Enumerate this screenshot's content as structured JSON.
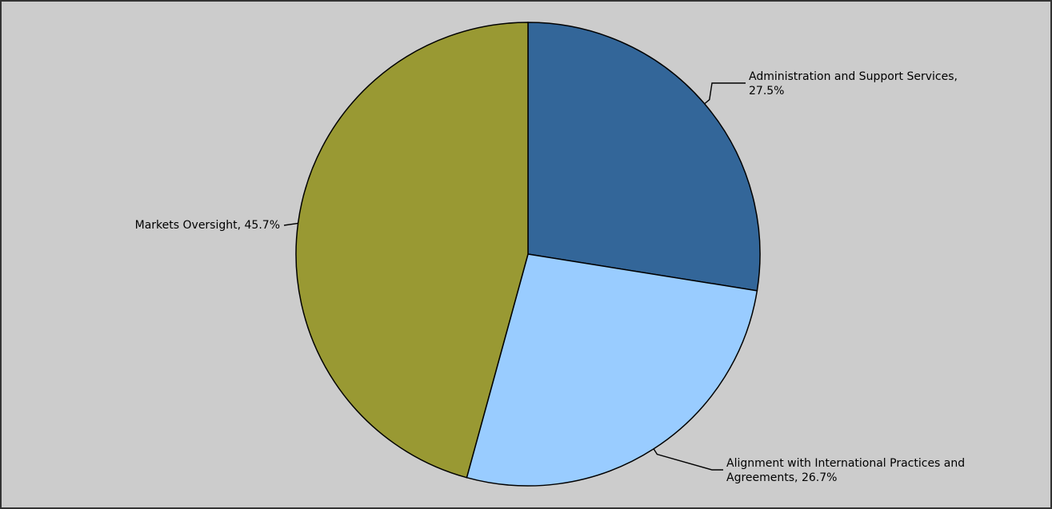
{
  "chart_data": {
    "type": "pie",
    "title": "",
    "legend": "none",
    "background": "#cccccc",
    "border_color": "#333333",
    "slices": [
      {
        "name": "Administration and Support Services",
        "value": 27.5,
        "color": "#336699",
        "label_lines": [
          "Administration and Support Services,",
          "27.5%"
        ]
      },
      {
        "name": "Alignment with International Practices and Agreements",
        "value": 26.7,
        "color": "#99ccff",
        "label_lines": [
          "Alignment with International Practices and",
          "Agreements, 26.7%"
        ]
      },
      {
        "name": "Markets Oversight",
        "value": 45.7,
        "color": "#999933",
        "label_lines": [
          "Markets Oversight, 45.7%"
        ]
      }
    ]
  }
}
